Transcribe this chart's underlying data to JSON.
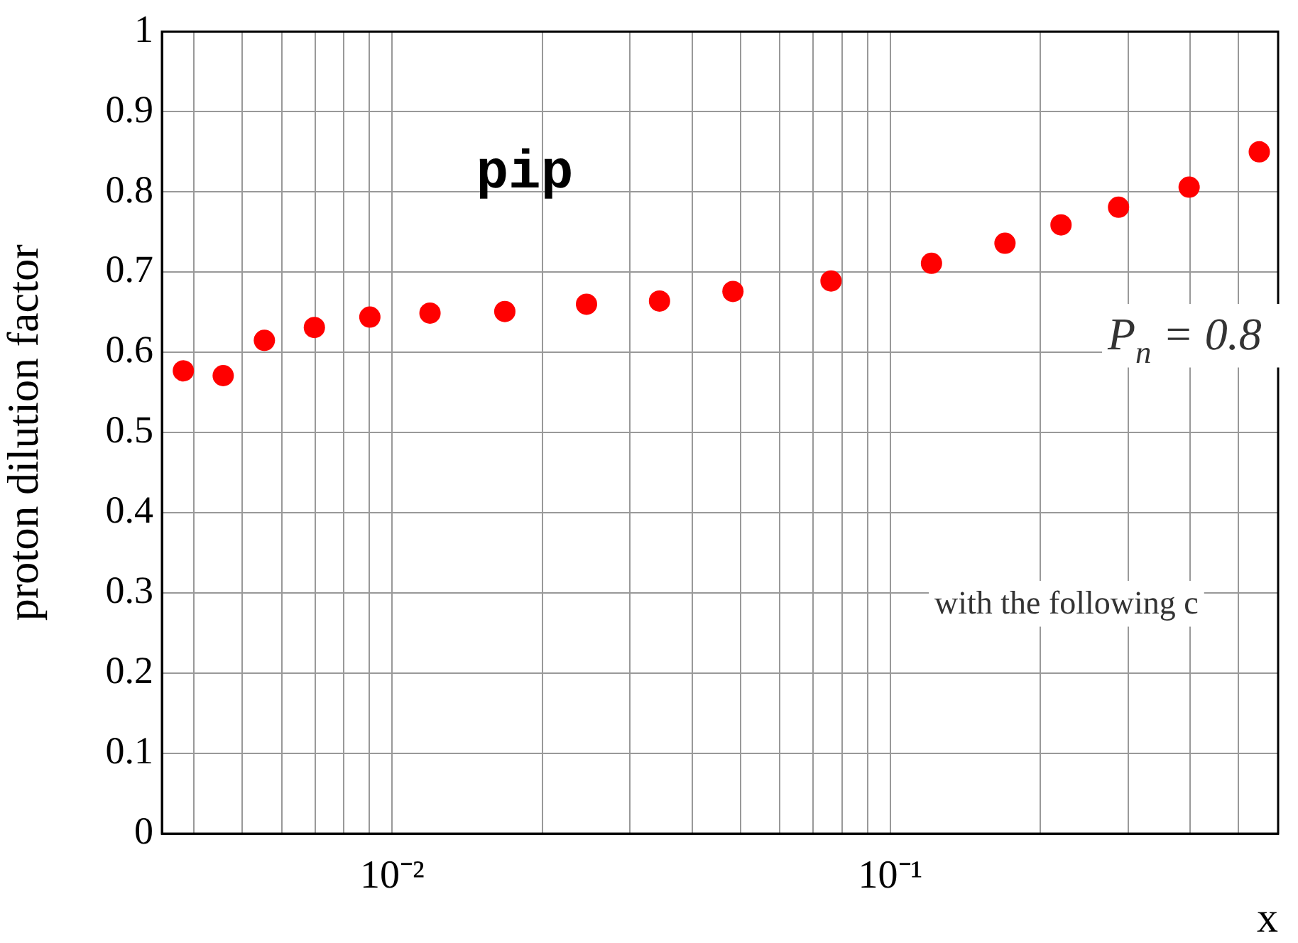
{
  "chart_data": {
    "type": "scatter",
    "title": "pip",
    "xlabel": "x",
    "ylabel": "proton dilution factor",
    "x": [
      0.00381,
      0.00458,
      0.00554,
      0.00698,
      0.00902,
      0.01191,
      0.01683,
      0.02455,
      0.0344,
      0.0483,
      0.076,
      0.1209,
      0.1698,
      0.22,
      0.287,
      0.3977,
      0.55
    ],
    "series": [
      {
        "color": "#ff0000",
        "values": [
          0.577,
          0.571,
          0.615,
          0.631,
          0.644,
          0.649,
          0.651,
          0.66,
          0.664,
          0.676,
          0.689,
          0.711,
          0.736,
          0.759,
          0.781,
          0.806,
          0.85
        ]
      }
    ],
    "log": "x",
    "xlim": [
      0.00345,
      0.6
    ],
    "xticks": [
      {
        "value": 0.004,
        "label": null
      },
      {
        "value": 0.005,
        "label": null
      },
      {
        "value": 0.006,
        "label": null
      },
      {
        "value": 0.007,
        "label": null
      },
      {
        "value": 0.008,
        "label": null
      },
      {
        "value": 0.009,
        "label": null
      },
      {
        "value": 0.01,
        "label": "10⁻²"
      },
      {
        "value": 0.02,
        "label": null
      },
      {
        "value": 0.03,
        "label": null
      },
      {
        "value": 0.04,
        "label": null
      },
      {
        "value": 0.05,
        "label": null
      },
      {
        "value": 0.06,
        "label": null
      },
      {
        "value": 0.07,
        "label": null
      },
      {
        "value": 0.08,
        "label": null
      },
      {
        "value": 0.09,
        "label": null
      },
      {
        "value": 0.1,
        "label": "10⁻¹"
      },
      {
        "value": 0.2,
        "label": null
      },
      {
        "value": 0.3,
        "label": null
      },
      {
        "value": 0.4,
        "label": null
      },
      {
        "value": 0.5,
        "label": null
      },
      {
        "value": 0.6,
        "label": null
      }
    ],
    "ylim": [
      0,
      1
    ],
    "yticks": [
      0,
      0.1,
      0.2,
      0.3,
      0.4,
      0.5,
      0.6,
      0.7,
      0.8,
      0.9,
      1
    ],
    "grid": true,
    "legend": false,
    "marker": "circle",
    "annotations": [
      "P$_{n}$ = 0.8",
      "with the following c"
    ]
  }
}
